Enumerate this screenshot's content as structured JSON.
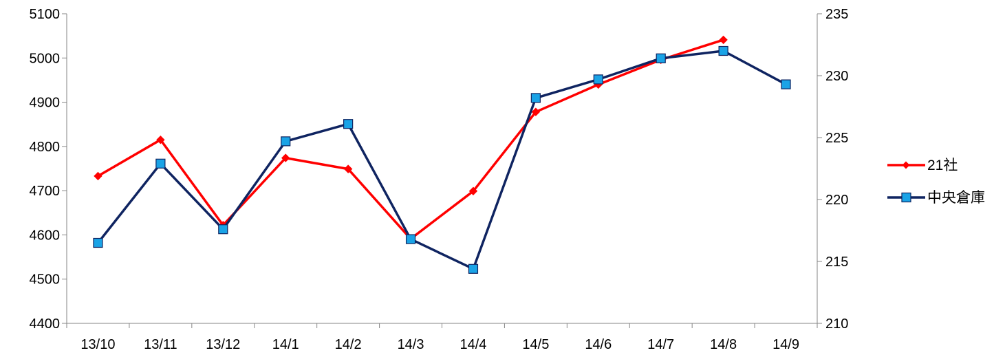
{
  "chart_data": {
    "type": "line",
    "categories": [
      "13/10",
      "13/11",
      "13/12",
      "14/1",
      "14/2",
      "14/3",
      "14/4",
      "14/5",
      "14/6",
      "14/7",
      "14/8",
      "14/9"
    ],
    "left_axis": {
      "ylim": [
        4400,
        5100
      ],
      "ticks": [
        "4400",
        "4500",
        "4600",
        "4700",
        "4800",
        "4900",
        "5000",
        "5100"
      ]
    },
    "right_axis": {
      "ylim": [
        210,
        235
      ],
      "ticks": [
        "210",
        "215",
        "220",
        "225",
        "230",
        "235"
      ]
    },
    "series": [
      {
        "name": "21社",
        "axis": "left",
        "color": "#ff0000",
        "marker": "diamond",
        "values": [
          4733,
          4815,
          4622,
          4774,
          4749,
          4591,
          4699,
          4878,
          4940,
          4996,
          5041,
          null
        ]
      },
      {
        "name": "中央倉庫",
        "axis": "right",
        "color": "#0f2461",
        "marker": "square",
        "marker_color": "#1aa3e6",
        "values": [
          216.5,
          222.9,
          217.6,
          224.7,
          226.1,
          216.8,
          214.4,
          228.2,
          229.7,
          231.4,
          232.0,
          229.3
        ]
      }
    ],
    "legend_position": "right",
    "grid": false
  }
}
